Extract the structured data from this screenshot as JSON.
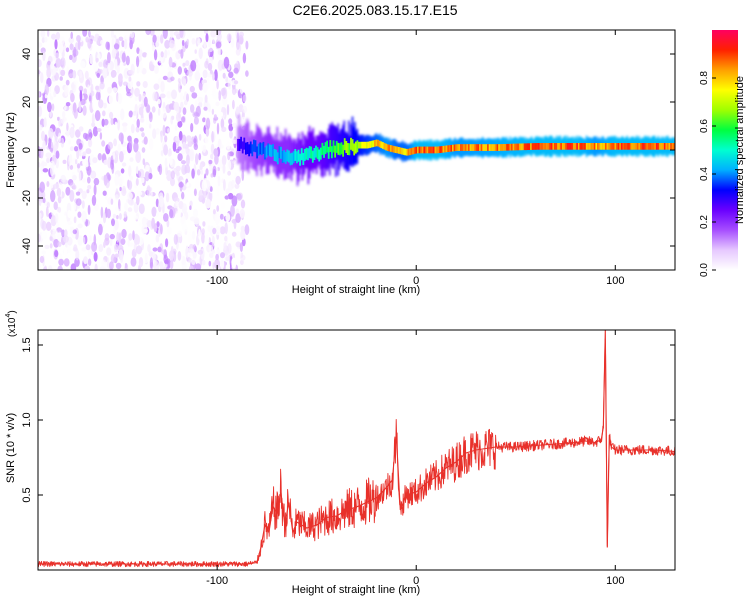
{
  "title": "C2E6.2025.083.15.17.E15",
  "colors": {
    "snr_line": "#e8302a",
    "axis": "#000000",
    "colormap": [
      "#ffffff",
      "#e6c8ff",
      "#a64dff",
      "#6a00ff",
      "#0000ff",
      "#00b0ff",
      "#00ffd0",
      "#00ff40",
      "#a0ff00",
      "#ffff00",
      "#ffa000",
      "#ff2000",
      "#ff0060"
    ]
  },
  "chart_data": [
    {
      "type": "heatmap",
      "xlabel": "Height of straight line (km)",
      "ylabel": "Frequency (Hz)",
      "xlim": [
        -190,
        130
      ],
      "ylim": [
        -50,
        50
      ],
      "xticks": [
        -100,
        0,
        100
      ],
      "yticks": [
        -40,
        -20,
        0,
        20,
        40
      ],
      "colorbar": {
        "label": "Normalized spectral amplitude",
        "range": [
          0,
          1
        ],
        "ticks": [
          "0.0",
          "0.2",
          "0.4",
          "0.6",
          "0.8"
        ],
        "tick_values": [
          0,
          0.2,
          0.4,
          0.6,
          0.8
        ]
      },
      "noise_region_x": [
        -190,
        -85
      ],
      "signal_track": {
        "x": [
          -90,
          -85,
          -80,
          -75,
          -70,
          -65,
          -60,
          -55,
          -50,
          -45,
          -40,
          -35,
          -30,
          -25,
          -20,
          -15,
          -10,
          -5,
          0,
          10,
          20,
          40,
          60,
          80,
          90,
          100,
          110,
          130
        ],
        "freq": [
          3,
          1,
          0,
          -1,
          -2,
          -3,
          -3,
          -2,
          -1,
          0,
          1,
          1,
          2,
          2,
          3,
          1,
          0,
          -1,
          0,
          0,
          1,
          1,
          1.5,
          1.5,
          1.5,
          1.5,
          1.5,
          1.5
        ],
        "amplitude": [
          0.3,
          0.35,
          0.4,
          0.45,
          0.45,
          0.45,
          0.5,
          0.55,
          0.55,
          0.6,
          0.65,
          0.7,
          0.75,
          0.8,
          0.85,
          0.9,
          0.85,
          0.85,
          0.95,
          0.95,
          0.9,
          0.92,
          0.95,
          0.95,
          0.9,
          0.95,
          0.95,
          0.95
        ]
      }
    },
    {
      "type": "line",
      "xlabel": "Height of straight line (km)",
      "ylabel": "SNR (10 * v/v)",
      "y_multiplier_label": "(x10",
      "y_multiplier_exp": "4",
      "y_multiplier_close": ")",
      "xlim": [
        -190,
        130
      ],
      "ylim": [
        0,
        16000
      ],
      "xticks": [
        -100,
        0,
        100
      ],
      "yticks": [
        5000,
        10000,
        15000
      ],
      "ytick_labels": [
        "0.5",
        "1.0",
        "1.5"
      ],
      "series": [
        {
          "x": [
            -190,
            -85,
            -80,
            -78,
            -76,
            -74,
            -72,
            -70,
            -68,
            -66,
            -64,
            -62,
            -60,
            -55,
            -50,
            -45,
            -40,
            -35,
            -30,
            -25,
            -20,
            -15,
            -12,
            -10,
            -8,
            -5,
            0,
            5,
            10,
            15,
            20,
            25,
            30,
            35,
            40,
            50,
            60,
            70,
            80,
            85,
            90,
            93,
            94,
            95,
            96,
            97,
            98,
            100,
            110,
            120,
            130
          ],
          "y": [
            400,
            400,
            500,
            1500,
            3000,
            2500,
            4200,
            3800,
            5200,
            3000,
            4500,
            2500,
            3200,
            2800,
            3000,
            3500,
            3600,
            4000,
            4200,
            4500,
            4800,
            5500,
            6000,
            9000,
            4000,
            5000,
            5200,
            5800,
            6200,
            6800,
            7200,
            7800,
            8000,
            8100,
            8200,
            8200,
            8300,
            8400,
            8500,
            8600,
            8500,
            8700,
            9500,
            16000,
            1500,
            9000,
            8200,
            8000,
            8000,
            8000,
            7900
          ]
        }
      ]
    }
  ]
}
